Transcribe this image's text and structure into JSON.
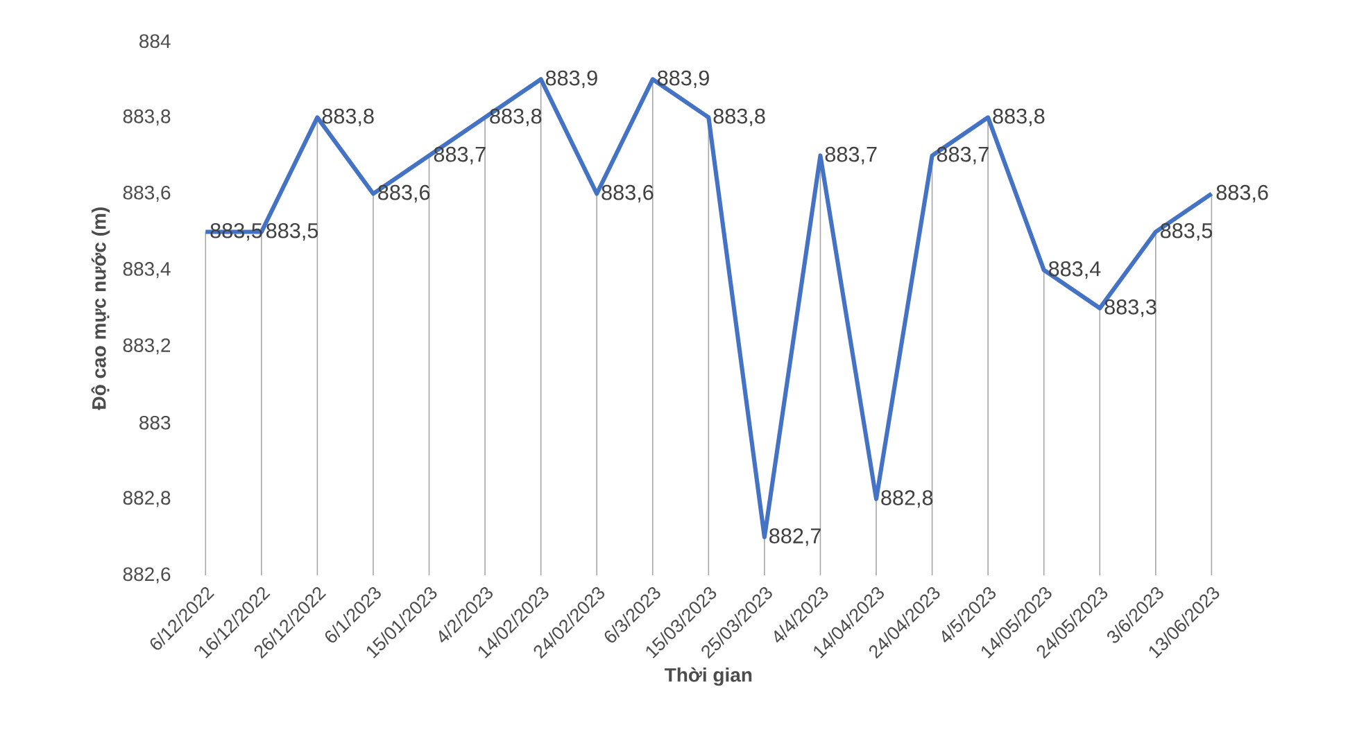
{
  "chart_data": {
    "type": "line",
    "xlabel": "Thời gian",
    "ylabel": "Độ cao mực nước (m)",
    "categories": [
      "6/12/2022",
      "16/12/2022",
      "26/12/2022",
      "6/1/2023",
      "15/01/2023",
      "4/2/2023",
      "14/02/2023",
      "24/02/2023",
      "6/3/2023",
      "15/03/2023",
      "25/03/2023",
      "4/4/2023",
      "14/04/2023",
      "24/04/2023",
      "4/5/2023",
      "14/05/2023",
      "24/05/2023",
      "3/6/2023",
      "13/06/2023"
    ],
    "series": [
      {
        "color": "#4472c4",
        "values": [
          883.5,
          883.5,
          883.8,
          883.6,
          883.7,
          883.8,
          883.9,
          883.6,
          883.9,
          883.8,
          882.7,
          883.7,
          882.8,
          883.7,
          883.8,
          883.4,
          883.3,
          883.5,
          883.6
        ],
        "value_labels": [
          "883,5",
          "883,5",
          "883,8",
          "883,6",
          "883,7",
          "883,8",
          "883,9",
          "883,6",
          "883,9",
          "883,8",
          "882,7",
          "883,7",
          "882,8",
          "883,7",
          "883,8",
          "883,4",
          "883,3",
          "883,5",
          "883,6"
        ]
      }
    ],
    "ylim": [
      882.6,
      884
    ],
    "yticks": [
      {
        "value": 882.6,
        "label": "882,6"
      },
      {
        "value": 882.8,
        "label": "882,8"
      },
      {
        "value": 883,
        "label": "883"
      },
      {
        "value": 883.2,
        "label": "883,2"
      },
      {
        "value": 883.4,
        "label": "883,4"
      },
      {
        "value": 883.6,
        "label": "883,6"
      },
      {
        "value": 883.8,
        "label": "883,8"
      },
      {
        "value": 884,
        "label": "884"
      }
    ],
    "grid": "x",
    "marker": "none",
    "line_style": "solid"
  }
}
